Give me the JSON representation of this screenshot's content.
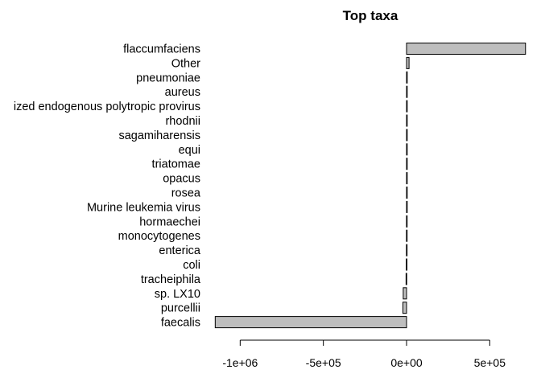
{
  "chart_data": {
    "type": "bar",
    "orientation": "horizontal",
    "title": "Top taxa",
    "xlabel": "",
    "ylabel": "",
    "categories": [
      "flaccumfaciens",
      "Other",
      "pneumoniae",
      "aureus",
      "ized endogenous polytropic provirus",
      "rhodnii",
      "sagamiharensis",
      "equi",
      "triatomae",
      "opacus",
      "rosea",
      "Murine leukemia virus",
      "hormaechei",
      "monocytogenes",
      "enterica",
      "coli",
      "tracheiphila",
      "sp. LX10",
      "purcellii",
      "faecalis"
    ],
    "values": [
      715000,
      15000,
      4000,
      2000,
      1500,
      1200,
      1000,
      900,
      800,
      700,
      600,
      500,
      -400,
      -600,
      -800,
      -1500,
      -3000,
      -20000,
      -22000,
      -1150000
    ],
    "xlim": [
      -1200000,
      800000
    ],
    "ticks": [
      {
        "value": -1000000,
        "label": "-1e+06"
      },
      {
        "value": -500000,
        "label": "-5e+05"
      },
      {
        "value": 0,
        "label": "0e+00"
      },
      {
        "value": 500000,
        "label": "5e+05"
      }
    ],
    "bar_color": "#bebebe",
    "grid": false,
    "legend": "none"
  }
}
